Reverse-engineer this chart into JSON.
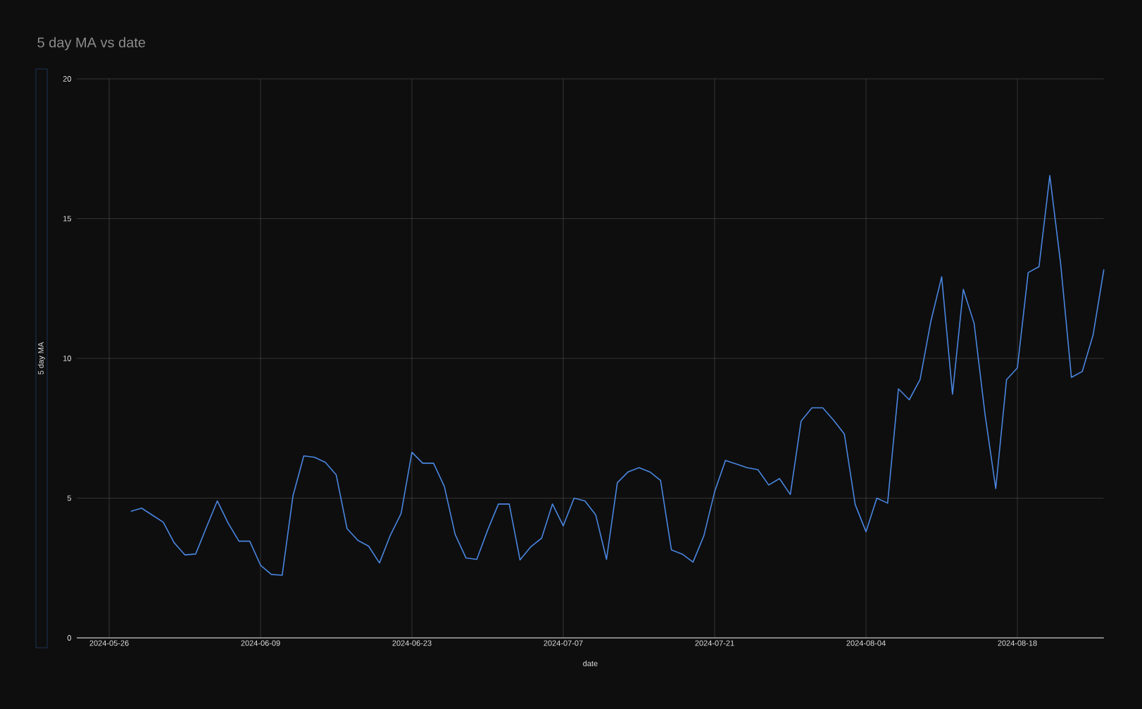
{
  "chart_data": {
    "type": "line",
    "title": "5 day MA vs date",
    "xlabel": "date",
    "ylabel": "5 day MA",
    "x": [
      "2024-05-28",
      "2024-05-29",
      "2024-05-30",
      "2024-05-31",
      "2024-06-01",
      "2024-06-02",
      "2024-06-03",
      "2024-06-04",
      "2024-06-05",
      "2024-06-06",
      "2024-06-07",
      "2024-06-08",
      "2024-06-09",
      "2024-06-10",
      "2024-06-11",
      "2024-06-12",
      "2024-06-13",
      "2024-06-14",
      "2024-06-15",
      "2024-06-16",
      "2024-06-17",
      "2024-06-18",
      "2024-06-19",
      "2024-06-20",
      "2024-06-21",
      "2024-06-22",
      "2024-06-23",
      "2024-06-24",
      "2024-06-25",
      "2024-06-26",
      "2024-06-27",
      "2024-06-28",
      "2024-06-29",
      "2024-06-30",
      "2024-07-01",
      "2024-07-02",
      "2024-07-03",
      "2024-07-04",
      "2024-07-05",
      "2024-07-06",
      "2024-07-07",
      "2024-07-08",
      "2024-07-09",
      "2024-07-10",
      "2024-07-11",
      "2024-07-12",
      "2024-07-13",
      "2024-07-14",
      "2024-07-15",
      "2024-07-16",
      "2024-07-17",
      "2024-07-18",
      "2024-07-19",
      "2024-07-20",
      "2024-07-21",
      "2024-07-22",
      "2024-07-23",
      "2024-07-24",
      "2024-07-25",
      "2024-07-26",
      "2024-07-27",
      "2024-07-28",
      "2024-07-29",
      "2024-07-30",
      "2024-07-31",
      "2024-08-01",
      "2024-08-02",
      "2024-08-03",
      "2024-08-04",
      "2024-08-05",
      "2024-08-06",
      "2024-08-07",
      "2024-08-08",
      "2024-08-09",
      "2024-08-10",
      "2024-08-11",
      "2024-08-12",
      "2024-08-13",
      "2024-08-14",
      "2024-08-15",
      "2024-08-16",
      "2024-08-17",
      "2024-08-18",
      "2024-08-19",
      "2024-08-20",
      "2024-08-21",
      "2024-08-22",
      "2024-08-23",
      "2024-08-24",
      "2024-08-25",
      "2024-08-26"
    ],
    "series": [
      {
        "color": "#4a86e0",
        "values": [
          4.53,
          4.64,
          4.39,
          4.14,
          3.41,
          2.97,
          3.0,
          3.96,
          4.9,
          4.11,
          3.46,
          3.46,
          2.6,
          2.27,
          2.24,
          5.08,
          6.51,
          6.46,
          6.28,
          5.83,
          3.91,
          3.49,
          3.28,
          2.68,
          3.67,
          4.45,
          6.64,
          6.25,
          6.25,
          5.42,
          3.7,
          2.86,
          2.81,
          3.85,
          4.79,
          4.79,
          2.79,
          3.26,
          3.57,
          4.79,
          4.01,
          5.0,
          4.9,
          4.4,
          2.81,
          5.55,
          5.94,
          6.09,
          5.94,
          5.63,
          3.15,
          3.0,
          2.71,
          3.65,
          5.23,
          6.35,
          6.22,
          6.09,
          6.02,
          5.47,
          5.7,
          5.13,
          7.76,
          8.23,
          8.23,
          7.79,
          7.29,
          4.77,
          3.8,
          5.0,
          4.82,
          8.91,
          8.52,
          9.24,
          11.33,
          12.92,
          8.72,
          12.47,
          11.25,
          8.02,
          5.34,
          9.24,
          9.66,
          13.07,
          13.28,
          16.54,
          13.39,
          9.32,
          9.53,
          10.83,
          13.18
        ]
      }
    ],
    "xlim": [
      "2024-05-23",
      "2024-08-26"
    ],
    "xticks": [
      "2024-05-26",
      "2024-06-09",
      "2024-06-23",
      "2024-07-07",
      "2024-07-21",
      "2024-08-04",
      "2024-08-18"
    ],
    "ylim": [
      0,
      20
    ],
    "yticks": [
      0,
      5,
      10,
      15,
      20
    ],
    "grid": true,
    "line_style": "solid",
    "marker": "none"
  }
}
